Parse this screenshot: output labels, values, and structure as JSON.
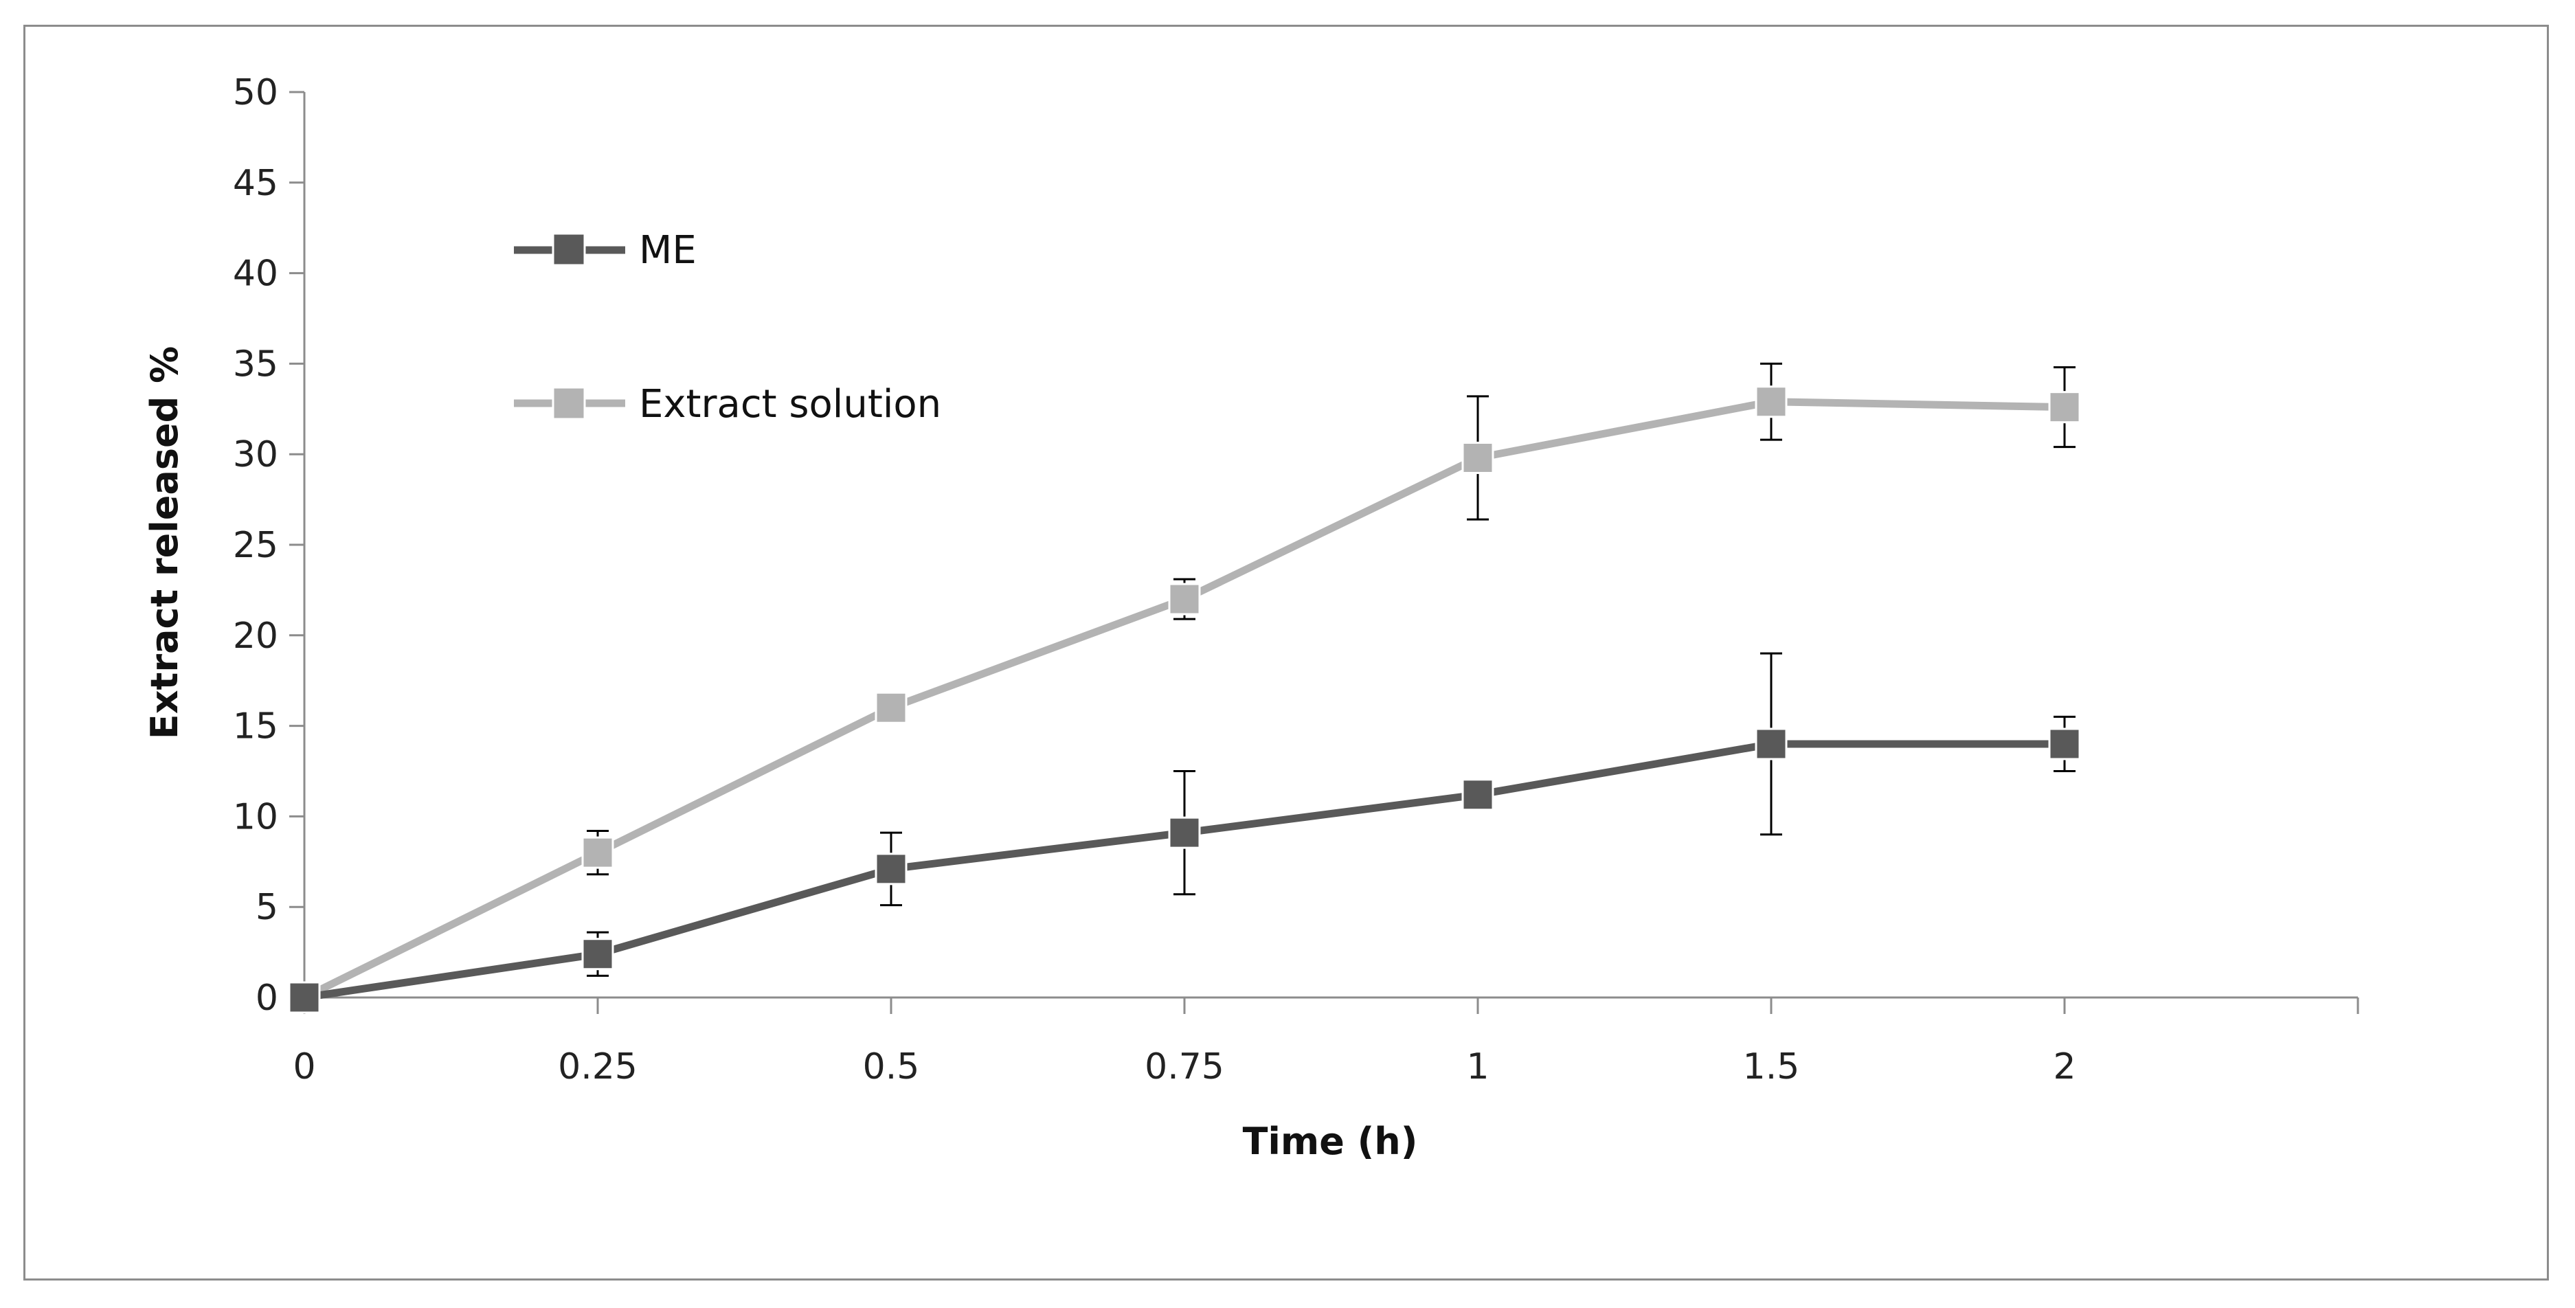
{
  "chart_data": {
    "type": "line",
    "title": "",
    "xlabel": "Time (h)",
    "ylabel": "Extract released %",
    "categories": [
      "0",
      "0.25",
      "0.5",
      "0.75",
      "1",
      "1.5",
      "2"
    ],
    "ylim": [
      0,
      50
    ],
    "yticks": [
      "0",
      "5",
      "10",
      "15",
      "20",
      "25",
      "30",
      "35",
      "40",
      "45",
      "50"
    ],
    "grid": false,
    "legend_position": "top-left",
    "series": [
      {
        "name": "ME",
        "color": "#595959",
        "values": [
          0,
          2.4,
          7.1,
          9.1,
          11.2,
          14.0,
          14.0
        ],
        "error": [
          0,
          1.2,
          2.0,
          3.4,
          0,
          5.0,
          1.5
        ]
      },
      {
        "name": "Extract solution",
        "color": "#b3b3b3",
        "values": [
          0,
          8.0,
          16.0,
          22.0,
          29.8,
          32.9,
          32.6
        ],
        "error": [
          0,
          1.2,
          0.8,
          1.1,
          3.4,
          2.1,
          2.2
        ]
      }
    ]
  }
}
